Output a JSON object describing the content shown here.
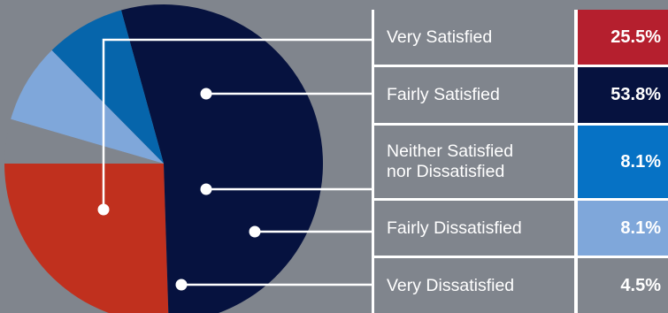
{
  "colors": {
    "background": "#80858d",
    "row_background": "#80858d",
    "leader_line": "#ffffff"
  },
  "chart_data": {
    "type": "pie",
    "categories": [
      "Very Satisfied",
      "Fairly Satisfied",
      "Neither Satisfied\nnor Dissatisfied",
      "Fairly Dissatisfied",
      "Very Dissatisfied"
    ],
    "values": [
      25.5,
      53.8,
      8.1,
      8.1,
      4.5
    ],
    "labels": [
      "25.5%",
      "53.8%",
      "8.1%",
      "8.1%",
      "4.5%"
    ],
    "colors": [
      "#c0301e",
      "#06123f",
      "#0665ab",
      "#7fa7da",
      "#80858d"
    ],
    "value_cell_colors": [
      "#b51f2e",
      "#06123f",
      "#0672c5",
      "#7fa7da",
      "#80858d"
    ],
    "start_angle_deg": 180,
    "direction": "counterclockwise",
    "legend_position": "right"
  }
}
